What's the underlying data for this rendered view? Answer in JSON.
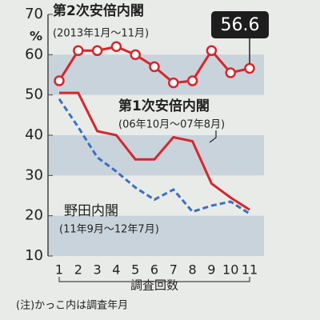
{
  "chart_data": {
    "type": "line",
    "ylabel": "%",
    "xlabel": "調査回数",
    "note": "(注)かっこ内は調査年月",
    "categories": [
      "1",
      "2",
      "3",
      "4",
      "5",
      "6",
      "7",
      "8",
      "9",
      "10",
      "11"
    ],
    "ylim": [
      10,
      70
    ],
    "yticks": [
      10,
      20,
      30,
      40,
      50,
      60,
      70
    ],
    "banded": true,
    "annotate": "last",
    "series": [
      {
        "name": "第2次安倍内閣",
        "period": "(2013年1月～11月)",
        "color": "#d7262c",
        "style": "solid",
        "markers": true,
        "values": [
          53.5,
          61,
          61,
          62,
          60,
          57,
          53,
          53.5,
          61,
          55.5,
          56.6
        ]
      },
      {
        "name": "第1次安倍内閣",
        "period": "(06年10月～07年8月)",
        "color": "#d7262c",
        "style": "solid",
        "markers": false,
        "values": [
          50.5,
          50.5,
          41,
          40,
          34,
          34,
          39.5,
          38.5,
          28,
          24.5,
          21.5
        ]
      },
      {
        "name": "野田内閣",
        "period": "(11年9月～12年7月)",
        "color": "#3d6fc2",
        "style": "dashed",
        "markers": false,
        "values": [
          49,
          42,
          34.5,
          31,
          27,
          24,
          26.5,
          21,
          22.5,
          23.5,
          20.5
        ]
      }
    ]
  }
}
